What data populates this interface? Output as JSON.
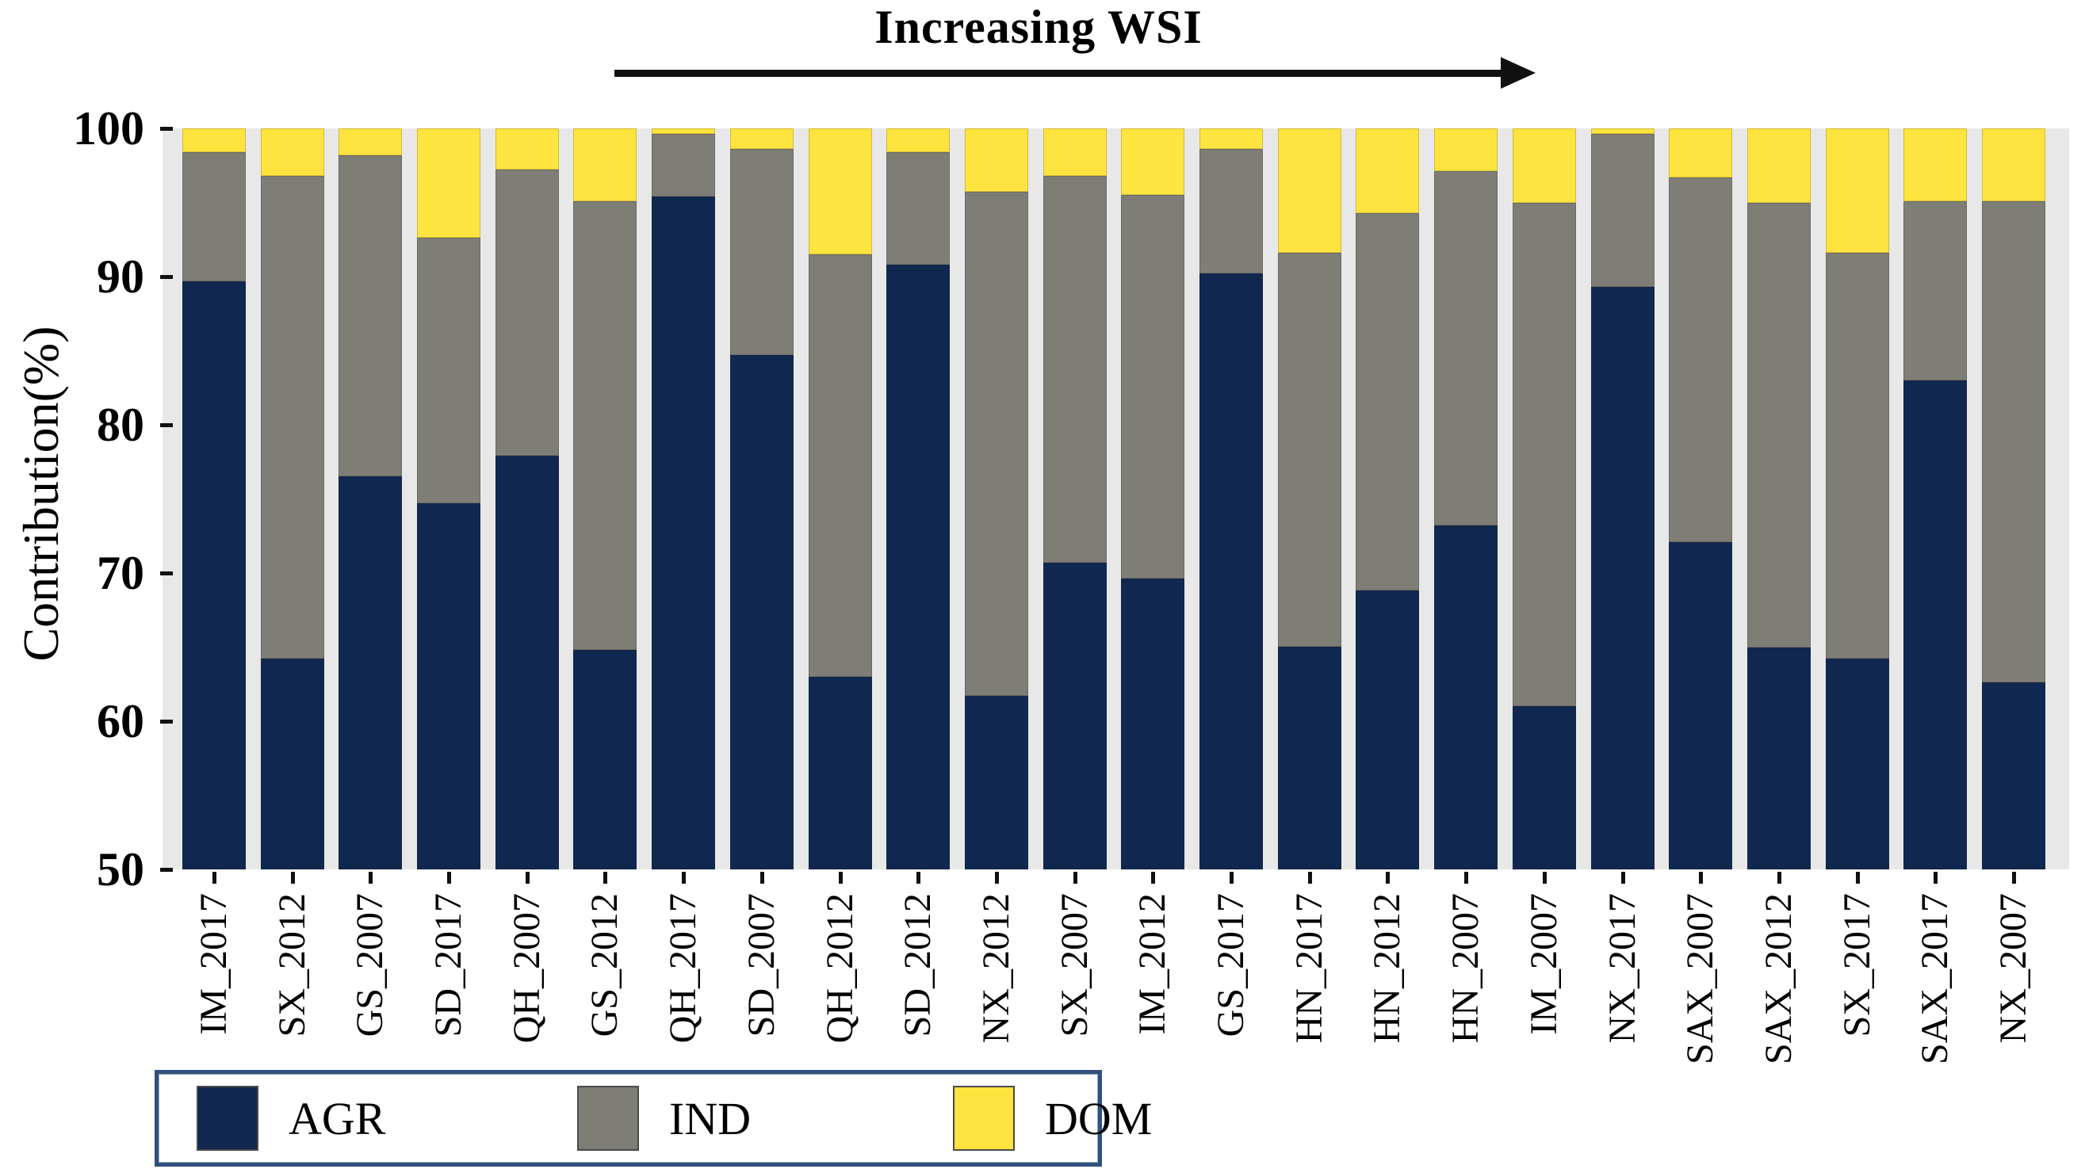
{
  "chart_data": {
    "type": "bar",
    "stacked": true,
    "title": "Increasing WSI",
    "ylabel": "Contribution(%)",
    "ylim": [
      50,
      100
    ],
    "yticks": [
      100,
      90,
      80,
      70,
      60,
      50
    ],
    "grid": false,
    "legend_position": "bottom-left",
    "legend": [
      "AGR",
      "IND",
      "DOM"
    ],
    "categories": [
      "IM_2017",
      "SX_2012",
      "GS_2007",
      "SD_2017",
      "QH_2007",
      "GS_2012",
      "QH_2017",
      "SD_2007",
      "QH_2012",
      "SD_2012",
      "NX_2012",
      "SX_2007",
      "IM_2012",
      "GS_2017",
      "HN_2017",
      "HN_2012",
      "HN_2007",
      "IM_2007",
      "NX_2017",
      "SAX_2007",
      "SAX_2012",
      "SX_2017",
      "SAX_2017",
      "NX_2007"
    ],
    "series": [
      {
        "name": "AGR",
        "color": "#10274f",
        "values": [
          89.7,
          64.2,
          76.5,
          74.7,
          77.9,
          64.8,
          95.4,
          84.7,
          63.0,
          90.8,
          61.7,
          70.7,
          69.6,
          90.2,
          65.0,
          68.8,
          73.2,
          61.0,
          89.3,
          72.1,
          65.0,
          64.2,
          83.0,
          62.6
        ]
      },
      {
        "name": "IND",
        "color": "#7e7d76",
        "values": [
          8.7,
          32.6,
          21.7,
          17.9,
          19.3,
          30.3,
          4.2,
          13.9,
          28.5,
          7.6,
          34.0,
          26.1,
          25.9,
          8.4,
          26.6,
          25.5,
          23.9,
          34.0,
          10.3,
          24.6,
          30.0,
          27.4,
          12.1,
          32.5
        ]
      },
      {
        "name": "DOM",
        "color": "#ffe33e",
        "values": [
          1.6,
          3.2,
          1.8,
          7.4,
          2.8,
          4.9,
          0.4,
          1.4,
          8.5,
          1.6,
          4.3,
          3.2,
          4.5,
          1.4,
          8.4,
          5.7,
          2.9,
          5.0,
          0.4,
          3.3,
          5.0,
          8.4,
          4.9,
          4.9
        ]
      }
    ],
    "annotation_arrow": "right-pointing arrow under title"
  },
  "colors": {
    "plot_background": "#e8e8e8",
    "agr": "#10274f",
    "ind": "#7e7d76",
    "dom": "#ffe33e",
    "legend_border": "#31507f",
    "axis_text": "#000000",
    "arrow": "#111111"
  }
}
